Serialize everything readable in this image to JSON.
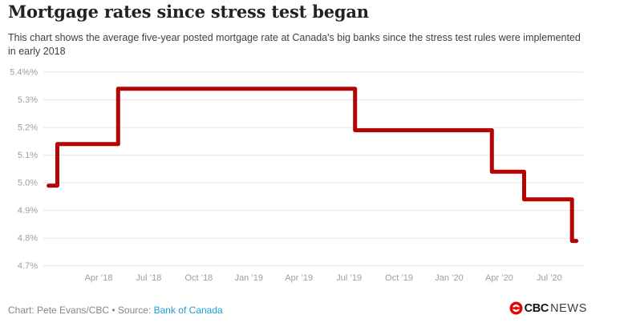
{
  "header": {
    "title": "Mortgage rates since stress test began",
    "subtitle_line1": "This chart shows the average five-year posted mortgage rate at Canada's big banks since the stress test rules were implemented",
    "subtitle_line2": "in early 2018"
  },
  "footer": {
    "credit_prefix": "Chart: Pete Evans/CBC • Source: ",
    "source_label": "Bank of Canada",
    "logo": {
      "cbc": "CBC",
      "news": "NEWS"
    }
  },
  "colors": {
    "line": "#b40404",
    "grid": "#e4e4e4",
    "axis_label": "#9e9e9e",
    "title": "#222222",
    "subtitle": "#404040",
    "credit": "#858585",
    "link": "#1d9bd9",
    "logo_red": "#e60505"
  },
  "chart_data": {
    "type": "line",
    "style": "step",
    "title": "Mortgage rates since stress test began",
    "xlabel": "",
    "ylabel": "",
    "unit": "%",
    "grid": "horizontal",
    "legend": "none",
    "ylim": [
      4.7,
      5.4
    ],
    "y_ticks": [
      {
        "value": 5.4,
        "label": "5.4%%"
      },
      {
        "value": 5.3,
        "label": "5.3%"
      },
      {
        "value": 5.2,
        "label": "5.2%"
      },
      {
        "value": 5.1,
        "label": "5.1%"
      },
      {
        "value": 5.0,
        "label": "5.0%"
      },
      {
        "value": 4.9,
        "label": "4.9%"
      },
      {
        "value": 4.8,
        "label": "4.8%"
      },
      {
        "value": 4.7,
        "label": "4.7%"
      }
    ],
    "x_ticks": [
      {
        "label": "Apr ’18",
        "date": "2018-04-01"
      },
      {
        "label": "Jul ’18",
        "date": "2018-07-01"
      },
      {
        "label": "Oct ’18",
        "date": "2018-10-01"
      },
      {
        "label": "Jan ’19",
        "date": "2019-01-01"
      },
      {
        "label": "Apr ’19",
        "date": "2019-04-01"
      },
      {
        "label": "Jul ’19",
        "date": "2019-07-01"
      },
      {
        "label": "Oct ’19",
        "date": "2019-10-01"
      },
      {
        "label": "Jan ’20",
        "date": "2020-01-01"
      },
      {
        "label": "Apr ’20",
        "date": "2020-04-01"
      },
      {
        "label": "Jul ’20",
        "date": "2020-07-01"
      }
    ],
    "series": [
      {
        "name": "Average five-year posted mortgage rate",
        "steps": [
          {
            "date": "2018-01-01",
            "rate": 4.99
          },
          {
            "date": "2018-01-17",
            "rate": 5.14
          },
          {
            "date": "2018-05-06",
            "rate": 5.34
          },
          {
            "date": "2019-07-12",
            "rate": 5.19
          },
          {
            "date": "2020-03-18",
            "rate": 5.04
          },
          {
            "date": "2020-05-16",
            "rate": 4.94
          },
          {
            "date": "2020-08-12",
            "rate": 4.79
          }
        ],
        "end_date": "2020-08-20"
      }
    ]
  }
}
